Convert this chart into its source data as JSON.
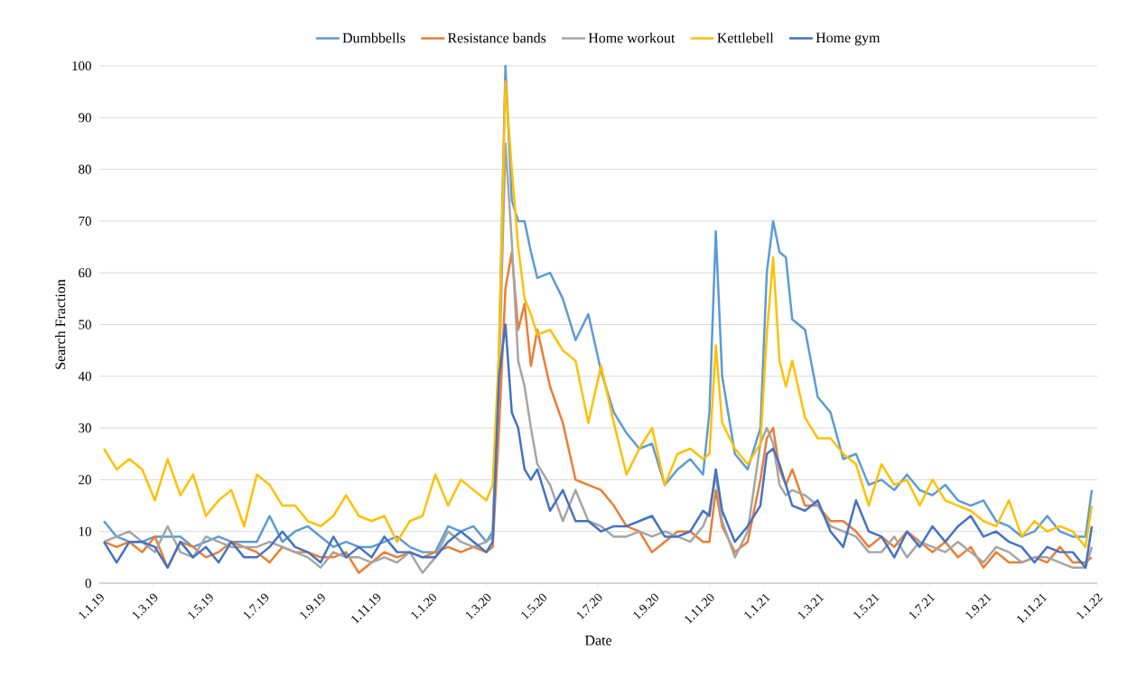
{
  "chart_data": {
    "type": "line",
    "xlabel": "Date",
    "ylabel": "Search Fraction",
    "x": [
      "2019-01-06",
      "2019-01-20",
      "2019-02-03",
      "2019-02-17",
      "2019-03-03",
      "2019-03-17",
      "2019-03-31",
      "2019-04-14",
      "2019-04-28",
      "2019-05-12",
      "2019-05-26",
      "2019-06-09",
      "2019-06-23",
      "2019-07-07",
      "2019-07-21",
      "2019-08-04",
      "2019-08-18",
      "2019-09-01",
      "2019-09-15",
      "2019-09-29",
      "2019-10-13",
      "2019-10-27",
      "2019-11-10",
      "2019-11-24",
      "2019-12-08",
      "2019-12-22",
      "2020-01-05",
      "2020-01-19",
      "2020-02-02",
      "2020-02-16",
      "2020-03-01",
      "2020-03-08",
      "2020-03-15",
      "2020-03-22",
      "2020-03-29",
      "2020-04-05",
      "2020-04-12",
      "2020-04-19",
      "2020-04-26",
      "2020-05-10",
      "2020-05-24",
      "2020-06-07",
      "2020-06-21",
      "2020-07-05",
      "2020-07-19",
      "2020-08-02",
      "2020-08-16",
      "2020-08-30",
      "2020-09-13",
      "2020-09-27",
      "2020-10-11",
      "2020-10-25",
      "2020-11-01",
      "2020-11-08",
      "2020-11-15",
      "2020-11-29",
      "2020-12-13",
      "2020-12-27",
      "2021-01-03",
      "2021-01-10",
      "2021-01-17",
      "2021-01-24",
      "2021-01-31",
      "2021-02-14",
      "2021-02-28",
      "2021-03-14",
      "2021-03-28",
      "2021-04-11",
      "2021-04-25",
      "2021-05-09",
      "2021-05-23",
      "2021-06-06",
      "2021-06-20",
      "2021-07-04",
      "2021-07-18",
      "2021-08-01",
      "2021-08-15",
      "2021-08-29",
      "2021-09-12",
      "2021-09-26",
      "2021-10-10",
      "2021-10-24",
      "2021-11-07",
      "2021-11-21",
      "2021-12-05",
      "2021-12-19",
      "2021-12-26"
    ],
    "series": [
      {
        "name": "Dumbbells",
        "color": "#5b9bd5",
        "values": [
          12,
          9,
          8,
          8,
          9,
          9,
          9,
          7,
          8,
          9,
          8,
          8,
          8,
          13,
          8,
          10,
          11,
          9,
          7,
          8,
          7,
          7,
          8,
          9,
          7,
          6,
          6,
          11,
          10,
          11,
          8,
          10,
          45,
          100,
          74,
          70,
          70,
          64,
          59,
          60,
          55,
          47,
          52,
          41,
          33,
          29,
          26,
          27,
          19,
          22,
          24,
          21,
          33,
          68,
          40,
          25,
          22,
          30,
          60,
          70,
          64,
          63,
          51,
          49,
          36,
          33,
          24,
          25,
          19,
          20,
          18,
          21,
          18,
          17,
          19,
          16,
          15,
          16,
          12,
          11,
          9,
          10,
          13,
          10,
          9,
          9,
          18
        ]
      },
      {
        "name": "Resistance bands",
        "color": "#ed7d31",
        "values": [
          8,
          7,
          8,
          6,
          9,
          3,
          8,
          7,
          5,
          6,
          8,
          7,
          6,
          4,
          7,
          6,
          6,
          5,
          5,
          6,
          2,
          4,
          6,
          5,
          6,
          5,
          6,
          7,
          6,
          7,
          6,
          7,
          30,
          57,
          64,
          49,
          54,
          42,
          49,
          38,
          31,
          20,
          19,
          18,
          15,
          11,
          10,
          6,
          8,
          10,
          10,
          8,
          8,
          18,
          11,
          6,
          8,
          20,
          28,
          30,
          22,
          19,
          22,
          15,
          15,
          12,
          12,
          10,
          7,
          9,
          7,
          10,
          8,
          6,
          8,
          5,
          7,
          3,
          6,
          4,
          4,
          5,
          4,
          7,
          4,
          4,
          5
        ]
      },
      {
        "name": "Home workout",
        "color": "#a5a5a5",
        "values": [
          8,
          9,
          10,
          8,
          6,
          11,
          6,
          5,
          9,
          8,
          7,
          7,
          7,
          8,
          7,
          6,
          5,
          3,
          6,
          5,
          5,
          4,
          5,
          4,
          6,
          2,
          5,
          10,
          8,
          7,
          8,
          9,
          40,
          85,
          66,
          43,
          38,
          30,
          23,
          19,
          12,
          18,
          12,
          11,
          9,
          9,
          10,
          9,
          10,
          9,
          8,
          11,
          14,
          21,
          12,
          5,
          10,
          27,
          30,
          27,
          19,
          17,
          18,
          17,
          15,
          11,
          10,
          9,
          6,
          6,
          9,
          5,
          8,
          7,
          6,
          8,
          6,
          4,
          7,
          6,
          4,
          5,
          5,
          4,
          3,
          3,
          7
        ]
      },
      {
        "name": "Kettlebell",
        "color": "#ffc000",
        "values": [
          26,
          22,
          24,
          22,
          16,
          24,
          17,
          21,
          13,
          16,
          18,
          11,
          21,
          19,
          15,
          15,
          12,
          11,
          13,
          17,
          13,
          12,
          13,
          8,
          12,
          13,
          21,
          15,
          20,
          18,
          16,
          19,
          45,
          97,
          80,
          65,
          55,
          52,
          48,
          49,
          45,
          43,
          31,
          42,
          31,
          21,
          26,
          30,
          19,
          25,
          26,
          24,
          25,
          46,
          31,
          26,
          23,
          27,
          48,
          63,
          43,
          38,
          43,
          32,
          28,
          28,
          25,
          23,
          15,
          23,
          19,
          20,
          15,
          20,
          16,
          15,
          14,
          12,
          11,
          16,
          9,
          12,
          10,
          11,
          10,
          7,
          15
        ]
      },
      {
        "name": "Home gym",
        "color": "#4472c4",
        "values": [
          8,
          4,
          8,
          8,
          7,
          3,
          8,
          5,
          7,
          4,
          8,
          5,
          5,
          7,
          10,
          7,
          6,
          4,
          9,
          5,
          7,
          5,
          9,
          6,
          6,
          5,
          5,
          8,
          10,
          8,
          6,
          8,
          40,
          50,
          33,
          30,
          22,
          20,
          22,
          14,
          18,
          12,
          12,
          10,
          11,
          11,
          12,
          13,
          9,
          9,
          10,
          14,
          13,
          22,
          14,
          8,
          11,
          15,
          25,
          26,
          23,
          19,
          15,
          14,
          16,
          10,
          7,
          16,
          10,
          9,
          5,
          10,
          7,
          11,
          8,
          11,
          13,
          9,
          10,
          8,
          7,
          4,
          7,
          6,
          6,
          3,
          11
        ]
      }
    ],
    "xlim": [
      "2019-01-01",
      "2022-01-01"
    ],
    "xticks": [
      {
        "value": "2019-01-01",
        "label": "1.1.19"
      },
      {
        "value": "2019-03-01",
        "label": "1.3.19"
      },
      {
        "value": "2019-05-01",
        "label": "1.5.19"
      },
      {
        "value": "2019-07-01",
        "label": "1.7.19"
      },
      {
        "value": "2019-09-01",
        "label": "1.9.19"
      },
      {
        "value": "2019-11-01",
        "label": "1.11.19"
      },
      {
        "value": "2020-01-01",
        "label": "1.1.20"
      },
      {
        "value": "2020-03-01",
        "label": "1.3.20"
      },
      {
        "value": "2020-05-01",
        "label": "1.5.20"
      },
      {
        "value": "2020-07-01",
        "label": "1.7.20"
      },
      {
        "value": "2020-09-01",
        "label": "1.9.20"
      },
      {
        "value": "2020-11-01",
        "label": "1.11.20"
      },
      {
        "value": "2021-01-01",
        "label": "1.1.21"
      },
      {
        "value": "2021-03-01",
        "label": "1.3.21"
      },
      {
        "value": "2021-05-01",
        "label": "1.5.21"
      },
      {
        "value": "2021-07-01",
        "label": "1.7.21"
      },
      {
        "value": "2021-09-01",
        "label": "1.9.21"
      },
      {
        "value": "2021-11-01",
        "label": "1.11.21"
      },
      {
        "value": "2022-01-01",
        "label": "1.1.22"
      }
    ],
    "ylim": [
      0,
      100
    ],
    "yticks": [
      0,
      10,
      20,
      30,
      40,
      50,
      60,
      70,
      80,
      90,
      100
    ],
    "grid": "y",
    "legend": "top"
  }
}
